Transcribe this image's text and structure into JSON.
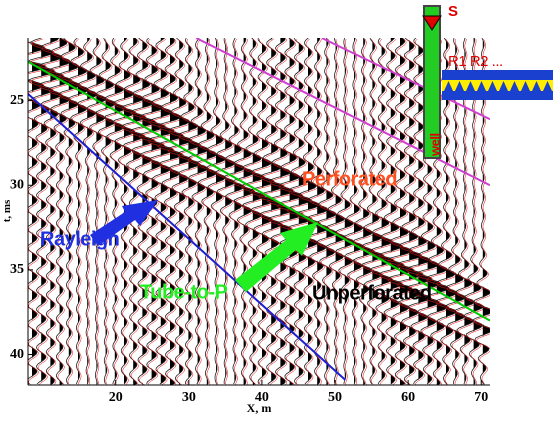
{
  "chart_data": {
    "type": "line",
    "xlabel": "X, m",
    "ylabel": "t, ms",
    "xlim": [
      8,
      71.2
    ],
    "ylim": [
      21.3,
      41.8
    ],
    "y_inverted": true,
    "xticks": [
      20,
      30,
      40,
      50,
      60,
      70
    ],
    "yticks": [
      25,
      30,
      35,
      40
    ],
    "series": [
      {
        "color": "#00cc00",
        "x": [
          8,
          71.2
        ],
        "values": [
          22.7,
          38.0
        ]
      },
      {
        "color": "#2020d0",
        "x": [
          8,
          51.4
        ],
        "values": [
          24.6,
          41.5
        ]
      },
      {
        "color": "#d040d0",
        "x": [
          31,
          71.2
        ],
        "values": [
          21.3,
          30.0
        ]
      },
      {
        "color": "#d040d0",
        "x": [
          48.2,
          71.2
        ],
        "values": [
          21.3,
          26.1
        ]
      }
    ],
    "annotations": [
      {
        "text": "Rayleigh",
        "color": "#2030e0"
      },
      {
        "text": "Tube-to-P",
        "color": "#22ee22"
      },
      {
        "text": "Unperforated",
        "color": "#000000"
      },
      {
        "text": "Perforated",
        "color": "#ff5020"
      },
      {
        "text": "S",
        "color": "#e00000"
      },
      {
        "text": "R1 R2 ...",
        "color": "#e00000"
      },
      {
        "text": "well",
        "color": "#e00000"
      }
    ]
  }
}
